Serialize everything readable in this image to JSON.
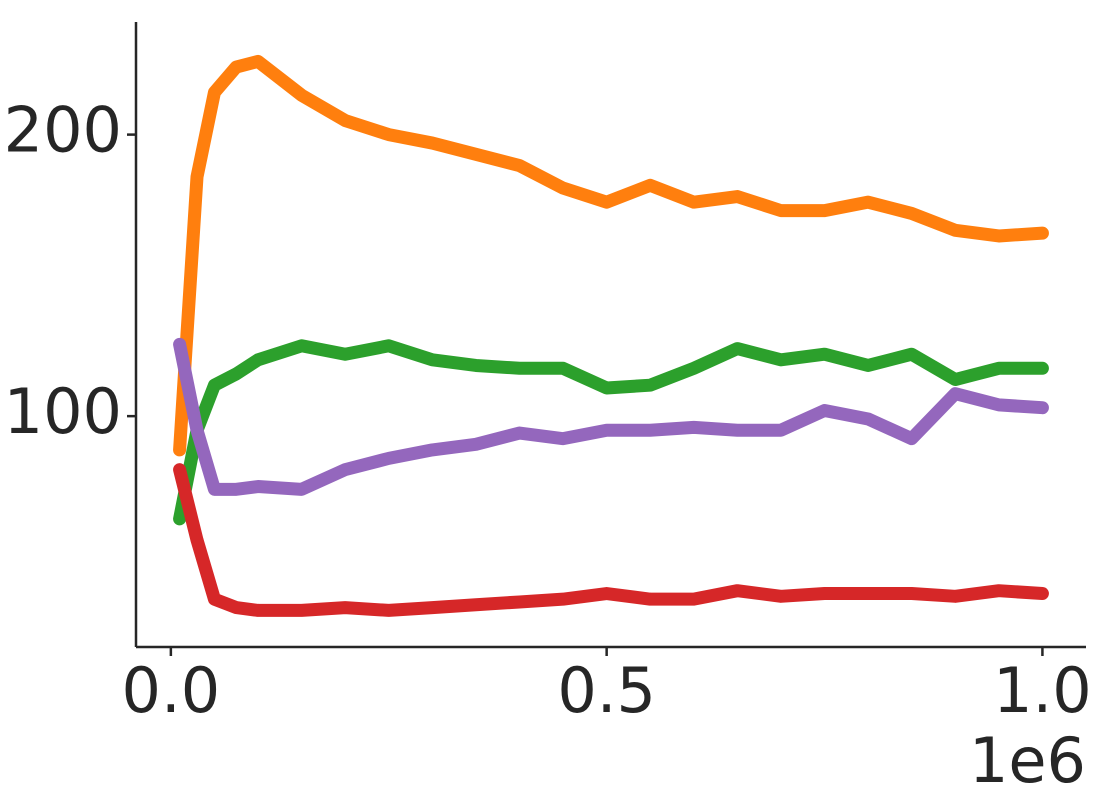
{
  "chart_data": {
    "type": "line",
    "x": [
      10000,
      30000,
      50000,
      75000,
      100000,
      150000,
      200000,
      250000,
      300000,
      350000,
      400000,
      450000,
      500000,
      550000,
      600000,
      650000,
      700000,
      750000,
      800000,
      850000,
      900000,
      950000,
      1000000
    ],
    "series": [
      {
        "color": "#ff7f0e",
        "values": [
          88,
          185,
          215,
          224,
          226,
          214,
          205,
          200,
          197,
          193,
          189,
          181,
          176,
          182,
          176,
          178,
          173,
          173,
          176,
          172,
          166,
          164,
          165
        ]
      },
      {
        "color": "#2ca02c",
        "values": [
          63.5,
          95,
          111,
          115,
          120,
          125,
          122,
          125,
          120,
          118,
          117,
          117,
          110,
          111,
          117,
          124,
          120,
          122,
          118,
          122,
          113,
          117,
          117
        ]
      },
      {
        "color": "#9467bd",
        "values": [
          125.5,
          95,
          74,
          74,
          75,
          74,
          81,
          85,
          88,
          90,
          94,
          92,
          95,
          95,
          96,
          95,
          95,
          102,
          99,
          92,
          108,
          104,
          103
        ]
      },
      {
        "color": "#d62728",
        "values": [
          81,
          56,
          35,
          32,
          31,
          31,
          32,
          31,
          32,
          33,
          34,
          35,
          37,
          35,
          35,
          38,
          36,
          37,
          37,
          37,
          36,
          38,
          37
        ]
      }
    ],
    "xlim": [
      -40000,
      1050000
    ],
    "xticks": [
      {
        "value": 0,
        "label": "0.0"
      },
      {
        "value": 500000,
        "label": "0.5"
      },
      {
        "value": 1000000,
        "label": "1.0"
      }
    ],
    "x_offset_label": "1e6",
    "ylim": [
      18,
      240
    ],
    "yticks": [
      100,
      200
    ],
    "grid": false
  }
}
